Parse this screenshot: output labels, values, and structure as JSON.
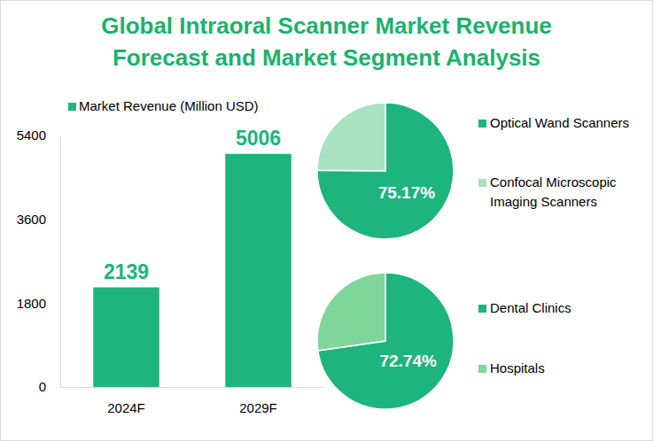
{
  "chart_data": [
    {
      "type": "bar",
      "title": "Global Intraoral Scanner Market Revenue Forecast and Market Segment Analysis",
      "categories": [
        "2024F",
        "2029F"
      ],
      "series": [
        {
          "name": "Market Revenue (Million USD)",
          "color": "#1db47d",
          "values": [
            2139,
            5006
          ]
        }
      ],
      "ylim": [
        0,
        5400
      ],
      "yticks": [
        0,
        1800,
        3600,
        5400
      ],
      "grid": false,
      "legend": "top-left",
      "data_labels": true
    },
    {
      "type": "pie",
      "categories": [
        "Optical Wand Scanners",
        "Confocal Microscopic Imaging Scanners"
      ],
      "values": [
        75.17,
        24.83
      ],
      "value_labels": [
        "75.17%",
        null
      ],
      "colors": [
        "#1db47d",
        "#a8e2c0"
      ],
      "data_labels": true,
      "legend": "right"
    },
    {
      "type": "pie",
      "categories": [
        "Dental Clinics",
        "Hospitals"
      ],
      "values": [
        72.74,
        27.26
      ],
      "value_labels": [
        "72.74%",
        null
      ],
      "colors": [
        "#1db47d",
        "#7fd69a"
      ],
      "data_labels": true,
      "legend": "right"
    }
  ]
}
